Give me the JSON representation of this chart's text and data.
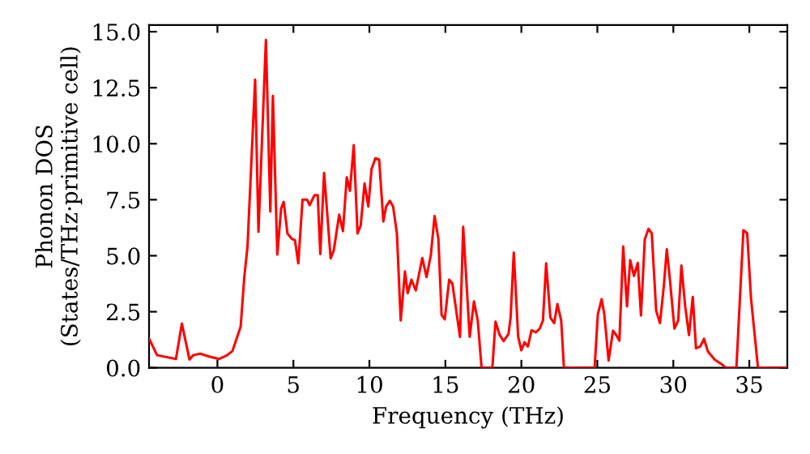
{
  "chart_data": {
    "type": "line",
    "xlabel": "Frequency (THz)",
    "ylabel": "Phonon DOS\n(States/THz·primitive cell)",
    "xlim": [
      -4.5,
      37.5
    ],
    "ylim": [
      0,
      15.3
    ],
    "xticks": [
      0,
      5,
      10,
      15,
      20,
      25,
      30,
      35
    ],
    "yticks": [
      {
        "value": 0,
        "label": "0.0"
      },
      {
        "value": 2.5,
        "label": "2.5"
      },
      {
        "value": 5,
        "label": "5.0"
      },
      {
        "value": 7.5,
        "label": "7.5"
      },
      {
        "value": 10,
        "label": "10.0"
      },
      {
        "value": 12.5,
        "label": "12.5"
      },
      {
        "value": 15,
        "label": "15.0"
      }
    ],
    "grid": false,
    "marker": "none",
    "line_style": "solid",
    "series": [
      {
        "color": "#ff0000",
        "x": [
          -4.5,
          -3.97,
          -2.73,
          -2.34,
          -1.84,
          -1.59,
          -1.13,
          -0.6,
          0.1,
          0.64,
          0.99,
          1.28,
          1.53,
          1.77,
          1.98,
          2.48,
          2.7,
          3.19,
          3.48,
          3.65,
          3.94,
          4.19,
          4.36,
          4.61,
          4.9,
          5.1,
          5.32,
          5.6,
          5.9,
          6.07,
          6.38,
          6.6,
          6.77,
          7.02,
          7.45,
          7.66,
          8.01,
          8.26,
          8.51,
          8.72,
          8.97,
          9.22,
          9.43,
          9.68,
          9.93,
          10.14,
          10.39,
          10.64,
          10.92,
          11.1,
          11.35,
          11.56,
          11.81,
          12.06,
          12.34,
          12.52,
          12.77,
          13.05,
          13.48,
          13.76,
          14.04,
          14.29,
          14.54,
          14.75,
          14.96,
          15.25,
          15.46,
          15.96,
          16.17,
          16.6,
          16.88,
          17.13,
          17.38,
          18.09,
          18.3,
          18.55,
          18.83,
          19.15,
          19.29,
          19.5,
          19.79,
          20.0,
          20.21,
          20.43,
          20.67,
          20.96,
          21.21,
          21.42,
          21.63,
          21.91,
          22.16,
          22.37,
          22.62,
          22.8,
          24.82,
          25.03,
          25.28,
          25.46,
          25.74,
          26.03,
          26.24,
          26.45,
          26.7,
          26.95,
          27.16,
          27.41,
          27.66,
          27.87,
          28.12,
          28.37,
          28.58,
          28.87,
          29.12,
          29.37,
          29.57,
          29.79,
          30.07,
          30.32,
          30.53,
          30.78,
          31.03,
          31.28,
          31.49,
          31.77,
          32.02,
          32.27,
          32.73,
          33.2,
          33.44,
          34.15,
          34.61,
          34.86,
          35.11,
          35.57,
          37.4
        ],
        "values": [
          1.3,
          0.56,
          0.39,
          1.97,
          0.37,
          0.56,
          0.63,
          0.51,
          0.39,
          0.56,
          0.75,
          1.33,
          1.84,
          4.07,
          5.41,
          12.86,
          6.07,
          14.63,
          6.97,
          12.13,
          5.05,
          7.1,
          7.4,
          5.99,
          5.75,
          5.7,
          4.66,
          7.5,
          7.5,
          7.26,
          7.7,
          7.7,
          5.07,
          8.7,
          4.88,
          5.25,
          6.83,
          6.1,
          8.5,
          7.9,
          9.94,
          5.99,
          6.36,
          8.23,
          7.2,
          8.86,
          9.35,
          9.3,
          6.53,
          7.2,
          7.45,
          7.2,
          5.99,
          2.11,
          4.3,
          3.33,
          3.93,
          3.45,
          4.9,
          4.05,
          5.02,
          6.77,
          5.75,
          2.35,
          2.16,
          3.93,
          3.76,
          1.38,
          6.29,
          1.38,
          2.96,
          2.11,
          0,
          0,
          2.06,
          1.5,
          1.19,
          1.5,
          2.23,
          5.14,
          1.38,
          0.78,
          1.14,
          0.95,
          1.67,
          1.58,
          1.75,
          2.11,
          4.66,
          2.23,
          1.99,
          2.84,
          2.11,
          0,
          0,
          2.38,
          3.06,
          2.38,
          0.32,
          1.65,
          1.46,
          1.21,
          5.41,
          2.74,
          4.8,
          4.1,
          4.68,
          2.33,
          5.73,
          6.2,
          6.0,
          2.55,
          1.99,
          3.62,
          5.29,
          3.82,
          1.75,
          2.11,
          4.56,
          2.74,
          1.46,
          3.16,
          0.87,
          0.95,
          1.29,
          0.73,
          0.36,
          0.15,
          0,
          0,
          6.14,
          6.0,
          3.09,
          0,
          0
        ]
      }
    ]
  }
}
